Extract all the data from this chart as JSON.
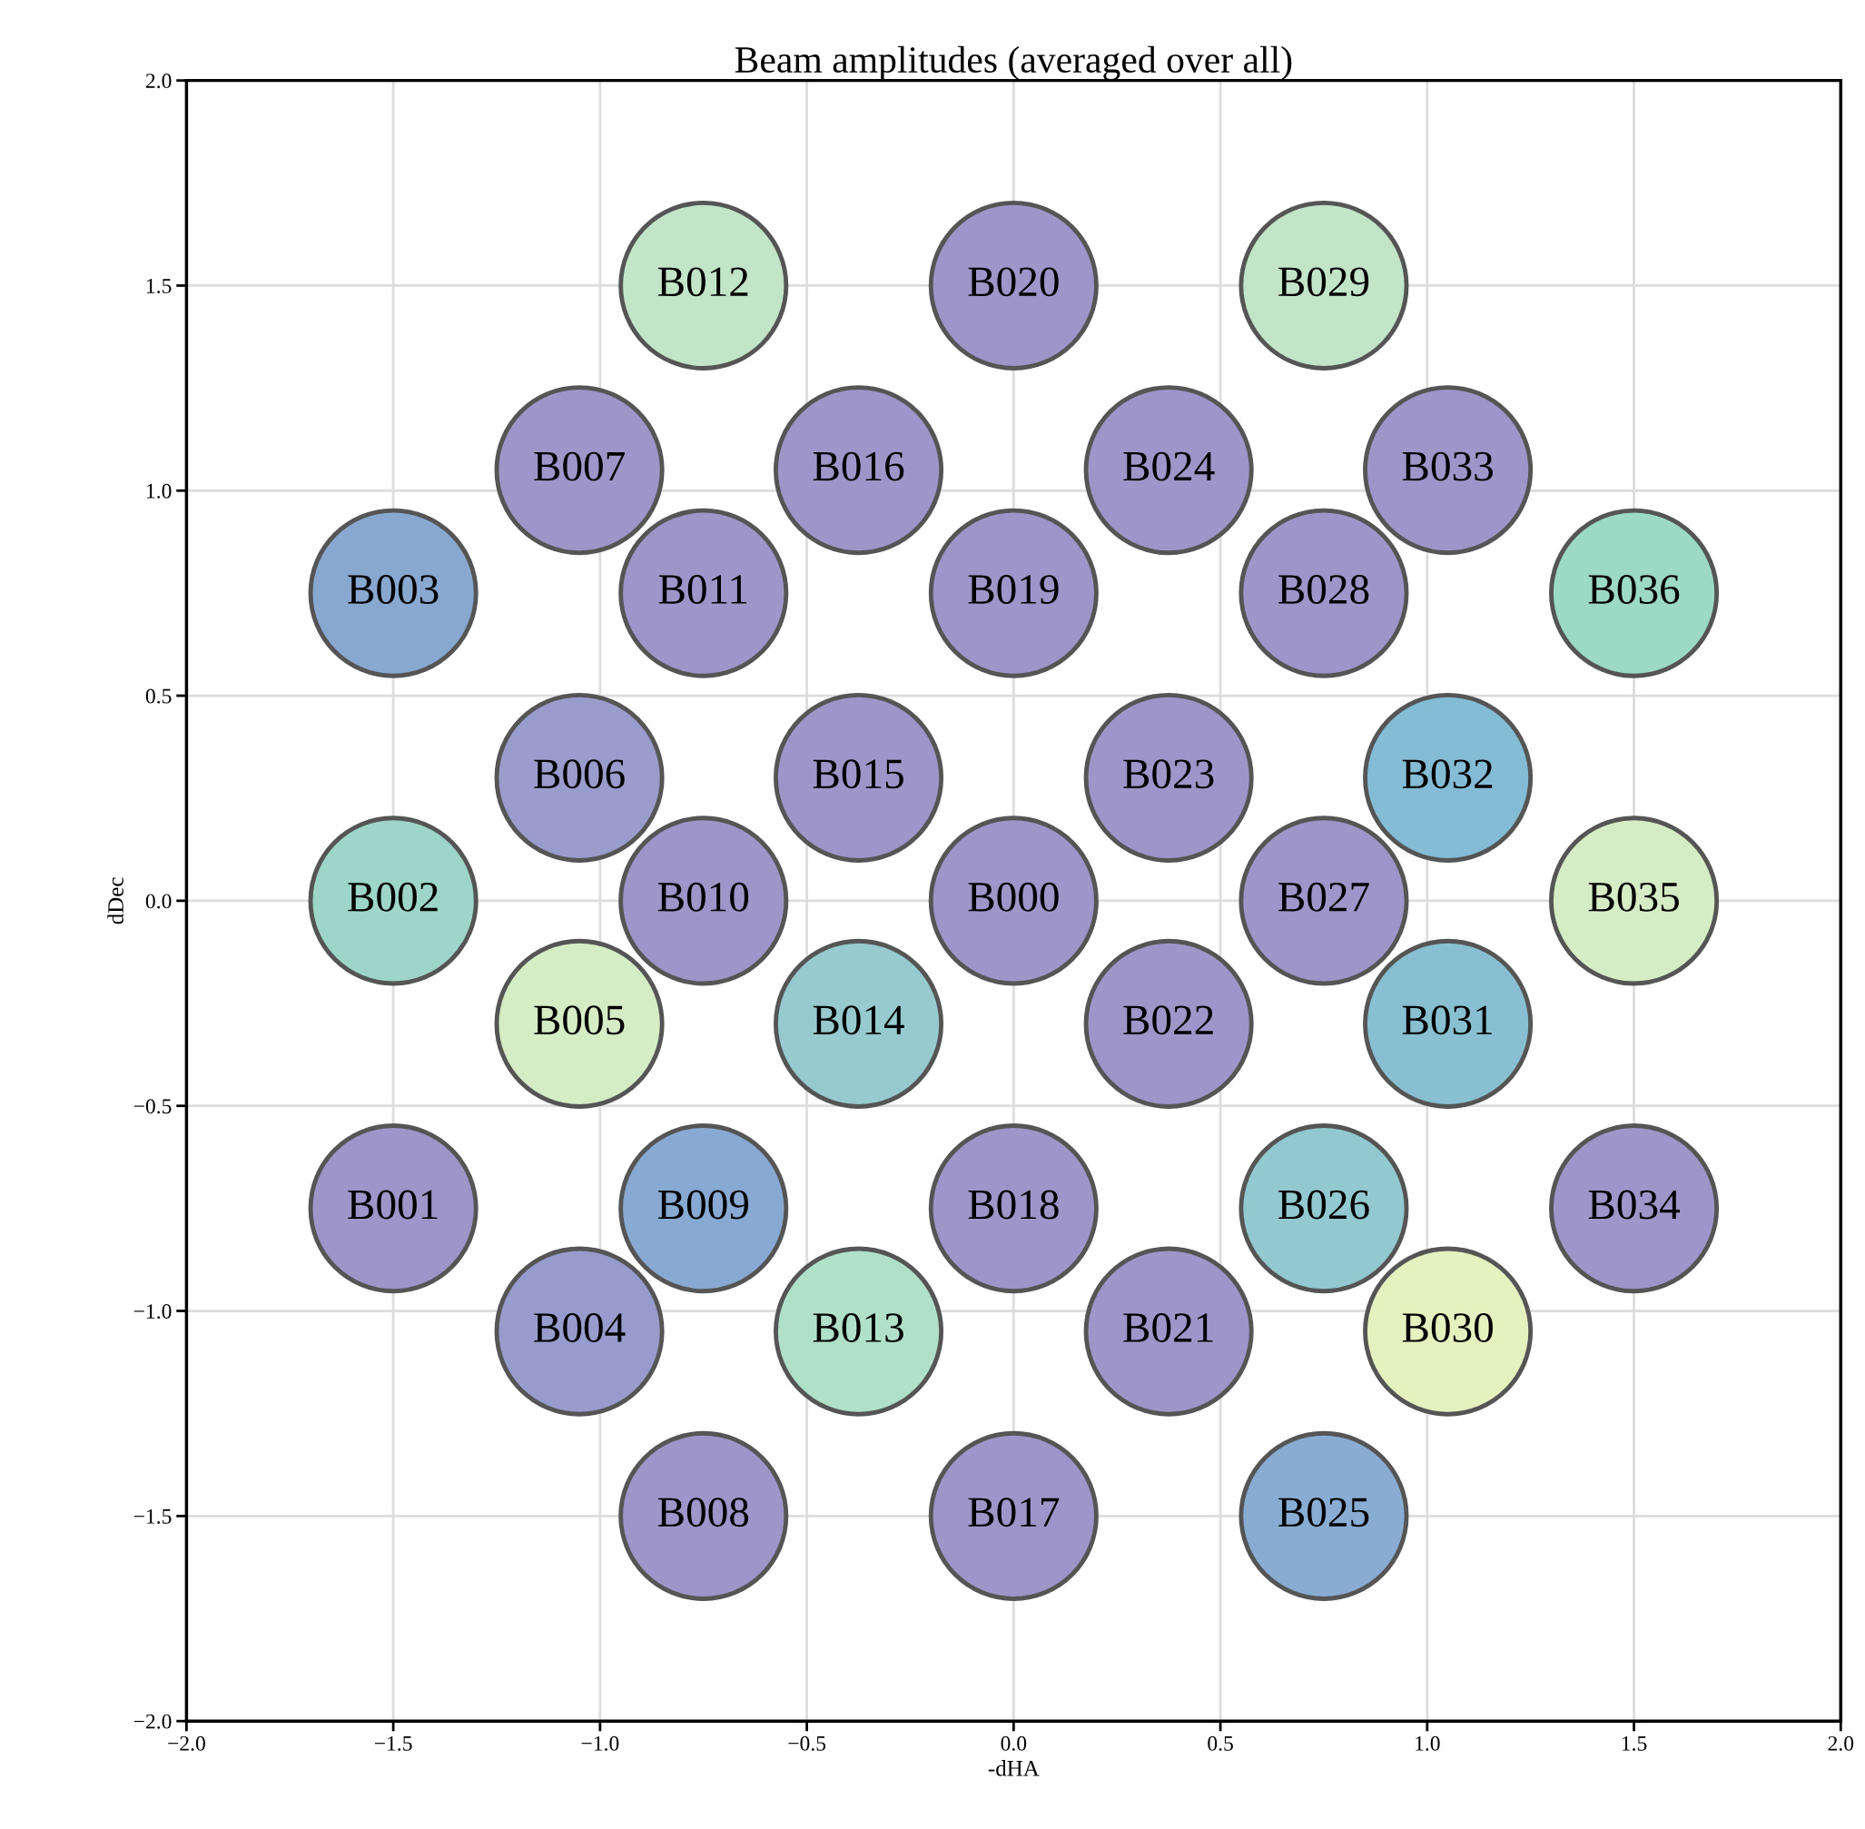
{
  "chart_data": {
    "type": "scatter",
    "title": "Beam amplitudes (averaged over all)",
    "xlabel": "-dHA",
    "ylabel": "dDec",
    "x": [
      0,
      -1.5,
      -1.5,
      -1.5,
      -1.05,
      -1.05,
      -1.05,
      -1.05,
      -0.75,
      -0.75,
      -0.75,
      -0.75,
      -0.75,
      -0.375,
      -0.375,
      -0.375,
      -0.375,
      0,
      0,
      0,
      0,
      0.375,
      0.375,
      0.375,
      0.375,
      0.75,
      0.75,
      0.75,
      0.75,
      0.75,
      1.05,
      1.05,
      1.05,
      1.05,
      1.5,
      1.5,
      1.5
    ],
    "values": [
      0,
      -0.75,
      0,
      0.75,
      -1.05,
      -0.3,
      0.3,
      1.05,
      -1.5,
      -0.75,
      0,
      0.75,
      1.5,
      -1.05,
      -0.3,
      0.3,
      1.05,
      -1.5,
      -0.75,
      0.75,
      1.5,
      -1.05,
      -0.3,
      0.3,
      1.05,
      -1.5,
      -0.75,
      0,
      0.75,
      1.5,
      -1.05,
      -0.3,
      0.3,
      1.05,
      -0.75,
      0,
      0.75
    ],
    "colors": [
      "#9e96c8",
      "#9e96c8",
      "#9dd6c8",
      "#88a8d0",
      "#989ccc",
      "#d5ecc5",
      "#9a9ccc",
      "#9e96c8",
      "#9e96c8",
      "#88aad2",
      "#9e96c8",
      "#9e96c8",
      "#c2e5c9",
      "#b0e0c8",
      "#96cacf",
      "#9e96c8",
      "#9e96c8",
      "#9e96c8",
      "#9e96c8",
      "#9e96c8",
      "#9e96c8",
      "#9e96c8",
      "#9e96c8",
      "#9e96c8",
      "#9e96c8",
      "#88acd2",
      "#92c8d0",
      "#9e96c8",
      "#9e96c8",
      "#c2e5c9",
      "#e4f2c0",
      "#88c0d2",
      "#84bcd6",
      "#9e96c8",
      "#9e96c8",
      "#d6ecc4",
      "#9cdac6"
    ],
    "annotations": [
      {
        "text": "B000",
        "x": 0,
        "y": 0
      },
      {
        "text": "B001",
        "x": -1.5,
        "y": -0.75
      },
      {
        "text": "B002",
        "x": -1.5,
        "y": 0
      },
      {
        "text": "B003",
        "x": -1.5,
        "y": 0.75
      },
      {
        "text": "B004",
        "x": -1.05,
        "y": -1.05
      },
      {
        "text": "B005",
        "x": -1.05,
        "y": -0.3
      },
      {
        "text": "B006",
        "x": -1.05,
        "y": 0.3
      },
      {
        "text": "B007",
        "x": -1.05,
        "y": 1.05
      },
      {
        "text": "B008",
        "x": -0.75,
        "y": -1.5
      },
      {
        "text": "B009",
        "x": -0.75,
        "y": -0.75
      },
      {
        "text": "B010",
        "x": -0.75,
        "y": 0
      },
      {
        "text": "B011",
        "x": -0.75,
        "y": 0.75
      },
      {
        "text": "B012",
        "x": -0.75,
        "y": 1.5
      },
      {
        "text": "B013",
        "x": -0.375,
        "y": -1.05
      },
      {
        "text": "B014",
        "x": -0.375,
        "y": -0.3
      },
      {
        "text": "B015",
        "x": -0.375,
        "y": 0.3
      },
      {
        "text": "B016",
        "x": -0.375,
        "y": 1.05
      },
      {
        "text": "B017",
        "x": 0,
        "y": -1.5
      },
      {
        "text": "B018",
        "x": 0,
        "y": -0.75
      },
      {
        "text": "B019",
        "x": 0,
        "y": 0.75
      },
      {
        "text": "B020",
        "x": 0,
        "y": 1.5
      },
      {
        "text": "B021",
        "x": 0.375,
        "y": -1.05
      },
      {
        "text": "B022",
        "x": 0.375,
        "y": -0.3
      },
      {
        "text": "B023",
        "x": 0.375,
        "y": 0.3
      },
      {
        "text": "B024",
        "x": 0.375,
        "y": 1.05
      },
      {
        "text": "B025",
        "x": 0.75,
        "y": -1.5
      },
      {
        "text": "B026",
        "x": 0.75,
        "y": -0.75
      },
      {
        "text": "B027",
        "x": 0.75,
        "y": 0
      },
      {
        "text": "B028",
        "x": 0.75,
        "y": 0.75
      },
      {
        "text": "B029",
        "x": 0.75,
        "y": 1.5
      },
      {
        "text": "B030",
        "x": 1.05,
        "y": -1.05
      },
      {
        "text": "B031",
        "x": 1.05,
        "y": -0.3
      },
      {
        "text": "B032",
        "x": 1.05,
        "y": 0.3
      },
      {
        "text": "B033",
        "x": 1.05,
        "y": 1.05
      },
      {
        "text": "B034",
        "x": 1.5,
        "y": -0.75
      },
      {
        "text": "B035",
        "x": 1.5,
        "y": 0
      },
      {
        "text": "B036",
        "x": 1.5,
        "y": 0.75
      }
    ],
    "xlim": [
      -2.0,
      2.0
    ],
    "ylim": [
      -2.0,
      2.0
    ],
    "xticks": [
      {
        "value": -2.0,
        "label": "−2.0"
      },
      {
        "value": -1.5,
        "label": "−1.5"
      },
      {
        "value": -1.0,
        "label": "−1.0"
      },
      {
        "value": -0.5,
        "label": "−0.5"
      },
      {
        "value": 0,
        "label": "0.0"
      },
      0.5,
      {
        "value": 1,
        "label": "1.0"
      },
      1.5,
      {
        "value": 2,
        "label": "2.0"
      }
    ],
    "yticks": [
      {
        "value": -2.0,
        "label": "−2.0"
      },
      {
        "value": -1.5,
        "label": "−1.5"
      },
      {
        "value": -1.0,
        "label": "−1.0"
      },
      {
        "value": -0.5,
        "label": "−0.5"
      },
      {
        "value": 0,
        "label": "0.0"
      },
      0.5,
      {
        "value": 1,
        "label": "1.0"
      },
      1.5,
      {
        "value": 2,
        "label": "2.0"
      }
    ],
    "grid": true,
    "marker": "circle"
  }
}
